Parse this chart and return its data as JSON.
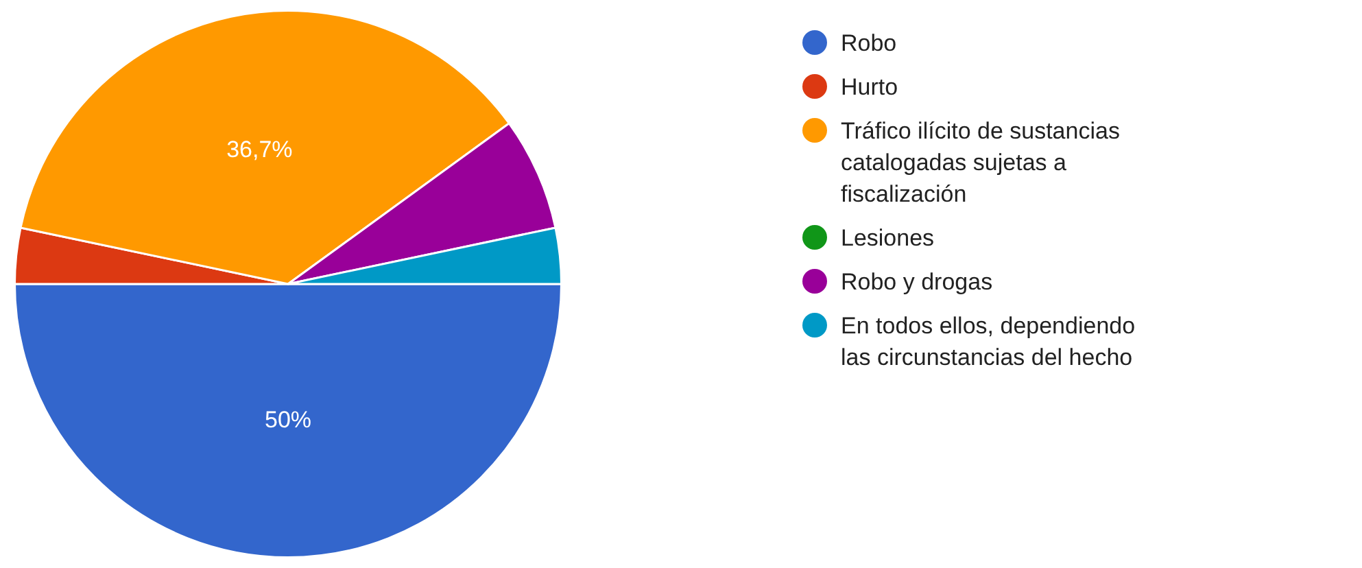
{
  "chart_data": {
    "type": "pie",
    "categories": [
      "Robo",
      "Hurto",
      "Tráfico ilícito de sustancias catalogadas sujetas a fiscalización",
      "Lesiones",
      "Robo y drogas",
      "En todos ellos, dependiendo las circunstancias del hecho"
    ],
    "values": [
      50,
      3.3,
      36.7,
      0,
      6.7,
      3.3
    ],
    "colors": [
      "#3366cc",
      "#dc3912",
      "#ff9900",
      "#109618",
      "#990099",
      "#0099c6"
    ],
    "value_labels": [
      "50%",
      null,
      "36,7%",
      null,
      null,
      null
    ],
    "legend": "right"
  }
}
